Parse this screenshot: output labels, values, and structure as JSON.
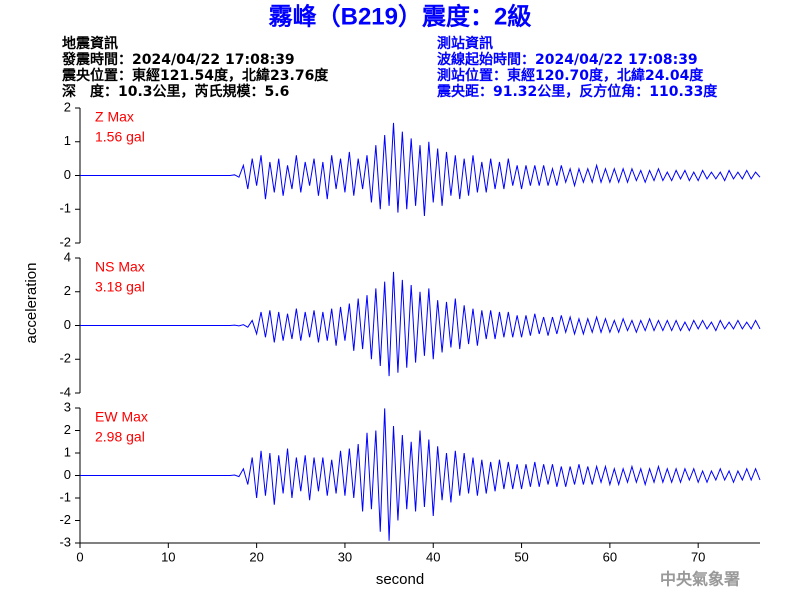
{
  "header": {
    "title": "霧峰（B219）震度：2級",
    "left": [
      "地震資訊",
      "發震時間：2024/04/22 17:08:39",
      "震央位置：東經121.54度，北緯23.76度",
      "深　度：10.3公里，芮氏規模：5.6"
    ],
    "right": [
      "測站資訊",
      "波線起始時間：2024/04/22 17:08:39",
      "測站位置：東經120.70度，北緯24.04度",
      "震央距：91.32公里，反方位角：110.33度"
    ]
  },
  "footer": "中央氣象署",
  "chart_data": {
    "type": "line",
    "xlabel": "second",
    "ylabel": "acceleration",
    "xlim": [
      0,
      77
    ],
    "xticks": [
      0,
      10,
      20,
      30,
      40,
      50,
      60,
      70
    ],
    "x": [
      0,
      17,
      17.5,
      18,
      18.5,
      19,
      19.5,
      20,
      20.5,
      21,
      21.5,
      22,
      22.5,
      23,
      23.5,
      24,
      24.5,
      25,
      25.5,
      26,
      26.5,
      27,
      27.5,
      28,
      28.5,
      29,
      29.5,
      30,
      30.5,
      31,
      31.5,
      32,
      32.5,
      33,
      33.5,
      34,
      34.5,
      35,
      35.5,
      36,
      36.5,
      37,
      37.5,
      38,
      38.5,
      39,
      39.5,
      40,
      40.5,
      41,
      41.5,
      42,
      42.5,
      43,
      43.5,
      44,
      44.5,
      45,
      45.5,
      46,
      46.5,
      47,
      47.5,
      48,
      48.5,
      49,
      49.5,
      50,
      50.5,
      51,
      51.5,
      52,
      52.5,
      53,
      53.5,
      54,
      54.5,
      55,
      55.5,
      56,
      56.5,
      57,
      57.5,
      58,
      58.5,
      59,
      59.5,
      60,
      60.5,
      61,
      61.5,
      62,
      62.5,
      63,
      63.5,
      64,
      64.5,
      65,
      65.5,
      66,
      66.5,
      67,
      67.5,
      68,
      68.5,
      69,
      69.5,
      70,
      70.5,
      71,
      71.5,
      72,
      72.5,
      73,
      73.5,
      74,
      74.5,
      75,
      75.5,
      76,
      76.5,
      77
    ],
    "series": [
      {
        "name": "Z Max",
        "annotation": "1.56 gal",
        "color": "#0000ff",
        "ylim": [
          -2,
          2
        ],
        "yticks": [
          -2,
          -1,
          0,
          1,
          2
        ],
        "values": [
          0,
          0,
          0.02,
          -0.05,
          0.3,
          -0.4,
          0.5,
          -0.3,
          0.6,
          -0.7,
          0.4,
          -0.5,
          0.5,
          -0.6,
          0.3,
          -0.4,
          0.6,
          -0.5,
          0.4,
          -0.3,
          0.5,
          -0.6,
          0.4,
          -0.7,
          0.6,
          -0.4,
          0.5,
          -0.5,
          0.7,
          -0.6,
          0.5,
          -0.4,
          0.6,
          -0.8,
          0.9,
          -1.0,
          1.2,
          -0.9,
          1.56,
          -1.1,
          1.3,
          -1.0,
          1.1,
          -0.9,
          0.9,
          -1.2,
          1.0,
          -0.8,
          0.8,
          -0.9,
          0.7,
          -0.6,
          0.6,
          -0.7,
          0.5,
          -0.6,
          0.6,
          -0.5,
          0.4,
          -0.5,
          0.5,
          -0.4,
          0.4,
          -0.4,
          0.5,
          -0.3,
          0.3,
          -0.4,
          0.3,
          -0.3,
          0.3,
          -0.3,
          0.3,
          -0.3,
          0.2,
          -0.3,
          0.3,
          -0.2,
          0.2,
          -0.3,
          0.2,
          -0.2,
          0.2,
          -0.2,
          0.3,
          -0.2,
          0.2,
          -0.2,
          0.2,
          -0.2,
          0.2,
          -0.2,
          0.2,
          -0.15,
          0.15,
          -0.2,
          0.15,
          -0.15,
          0.2,
          -0.15,
          0.1,
          -0.15,
          0.15,
          -0.1,
          0.15,
          -0.15,
          0.1,
          -0.15,
          0.15,
          -0.1,
          0.1,
          -0.1,
          0.1,
          -0.15,
          0.15,
          -0.1,
          0.1,
          -0.1,
          0.15,
          -0.1,
          0.1,
          -0.05
        ]
      },
      {
        "name": "NS Max",
        "annotation": "3.18 gal",
        "color": "#0000ff",
        "ylim": [
          -4,
          4
        ],
        "yticks": [
          -4,
          -2,
          0,
          2,
          4
        ],
        "values": [
          0,
          0,
          0.02,
          -0.02,
          0.05,
          -0.1,
          0.3,
          -0.5,
          0.8,
          -0.7,
          0.9,
          -1.0,
          0.8,
          -0.9,
          0.7,
          -0.8,
          1.0,
          -0.9,
          0.8,
          -0.7,
          0.9,
          -1.0,
          0.8,
          -0.9,
          1.0,
          -1.2,
          1.1,
          -0.9,
          1.3,
          -1.5,
          1.6,
          -1.4,
          1.8,
          -2.0,
          2.2,
          -2.4,
          2.6,
          -3.0,
          3.18,
          -2.8,
          2.7,
          -2.5,
          2.4,
          -2.2,
          2.0,
          -1.8,
          2.2,
          -2.0,
          1.5,
          -1.6,
          1.4,
          -1.3,
          1.6,
          -1.4,
          1.2,
          -1.1,
          1.0,
          -1.2,
          0.9,
          -0.8,
          0.9,
          -0.8,
          0.8,
          -0.7,
          0.8,
          -0.7,
          0.6,
          -0.7,
          0.6,
          -0.6,
          0.7,
          -0.5,
          0.5,
          -0.6,
          0.5,
          -0.5,
          0.6,
          -0.4,
          0.5,
          -0.5,
          0.4,
          -0.5,
          0.4,
          -0.4,
          0.5,
          -0.4,
          0.4,
          -0.4,
          0.3,
          -0.4,
          0.4,
          -0.3,
          0.3,
          -0.4,
          0.3,
          -0.3,
          0.4,
          -0.3,
          0.3,
          -0.3,
          0.3,
          -0.3,
          0.3,
          -0.3,
          0.2,
          -0.3,
          0.3,
          -0.2,
          0.3,
          -0.2,
          0.2,
          -0.3,
          0.3,
          -0.2,
          0.2,
          -0.2,
          0.3,
          -0.2,
          0.2,
          -0.2,
          0.3,
          -0.2
        ]
      },
      {
        "name": "EW Max",
        "annotation": "2.98 gal",
        "color": "#0000ff",
        "ylim": [
          -3,
          3
        ],
        "yticks": [
          -3,
          -2,
          -1,
          0,
          1,
          2,
          3
        ],
        "values": [
          0,
          0,
          0.02,
          -0.05,
          0.3,
          -0.4,
          0.8,
          -1.0,
          1.1,
          -0.9,
          1.0,
          -1.3,
          0.9,
          -0.8,
          1.2,
          -1.0,
          0.8,
          -0.7,
          0.9,
          -1.1,
          0.8,
          -0.7,
          0.8,
          -0.9,
          0.7,
          -0.8,
          1.1,
          -0.9,
          1.2,
          -1.0,
          1.4,
          -1.6,
          1.9,
          -1.5,
          2.0,
          -2.5,
          2.98,
          -2.9,
          2.2,
          -2.0,
          1.8,
          -1.5,
          1.5,
          -1.6,
          2.0,
          -1.4,
          1.6,
          -1.8,
          1.3,
          -1.1,
          1.0,
          -1.2,
          1.1,
          -0.9,
          1.0,
          -0.8,
          0.8,
          -0.9,
          0.7,
          -0.8,
          0.6,
          -0.7,
          0.7,
          -0.6,
          0.6,
          -0.6,
          0.5,
          -0.6,
          0.5,
          -0.5,
          0.6,
          -0.5,
          0.5,
          -0.4,
          0.5,
          -0.5,
          0.4,
          -0.5,
          0.4,
          -0.4,
          0.5,
          -0.4,
          0.4,
          -0.4,
          0.4,
          -0.3,
          0.4,
          -0.4,
          0.3,
          -0.4,
          0.3,
          -0.3,
          0.4,
          -0.3,
          0.3,
          -0.4,
          0.3,
          -0.3,
          0.4,
          -0.3,
          0.3,
          -0.3,
          0.3,
          -0.3,
          0.3,
          -0.2,
          0.3,
          -0.3,
          0.2,
          -0.3,
          0.2,
          -0.2,
          0.3,
          -0.2,
          0.2,
          -0.3,
          0.2,
          -0.2,
          0.3,
          -0.2,
          0.3,
          -0.2
        ]
      }
    ]
  }
}
